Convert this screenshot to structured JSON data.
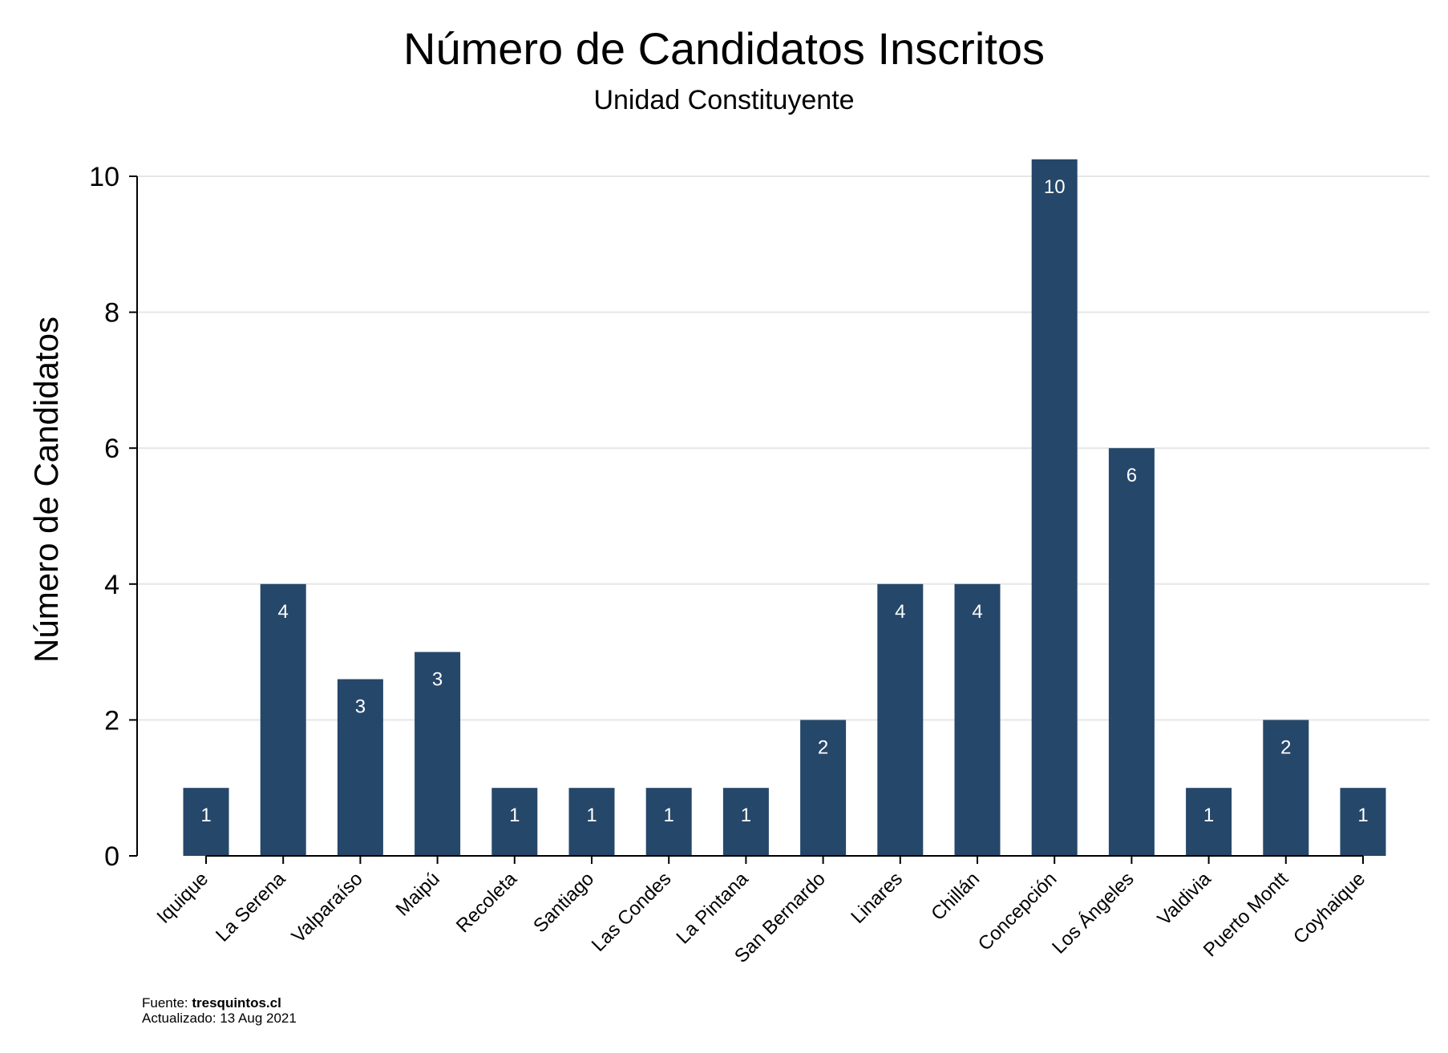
{
  "chart_data": {
    "type": "bar",
    "title": "Número de Candidatos Inscritos",
    "subtitle": "Unidad Constituyente",
    "xlabel": "",
    "ylabel": "Número de Candidatos",
    "ylim": [
      0,
      10
    ],
    "yticks": [
      0,
      2,
      4,
      6,
      8,
      10
    ],
    "grid": true,
    "categories": [
      "Iquique",
      "La Serena",
      "Valparaíso",
      "Maipú",
      "Recoleta",
      "Santiago",
      "Las Condes",
      "La Pintana",
      "San Bernardo",
      "Linares",
      "Chillán",
      "Concepción",
      "Los Ángeles",
      "Valdivia",
      "Puerto Montt",
      "Coyhaique"
    ],
    "values": [
      1,
      4,
      2.6,
      3,
      1,
      1,
      1,
      1,
      2,
      4,
      4,
      10.25,
      6,
      1,
      2,
      1
    ],
    "data_labels": [
      "1",
      "4",
      "3",
      "3",
      "1",
      "1",
      "1",
      "1",
      "2",
      "4",
      "4",
      "10",
      "6",
      "1",
      "2",
      "1"
    ],
    "bar_color": "#25476a",
    "label_color": "#ffffff",
    "grid_color": "#e6e6e6"
  },
  "footer": {
    "source_prefix": "Fuente: ",
    "source_name": "tresquintos.cl",
    "updated": "Actualizado: 13 Aug 2021"
  }
}
